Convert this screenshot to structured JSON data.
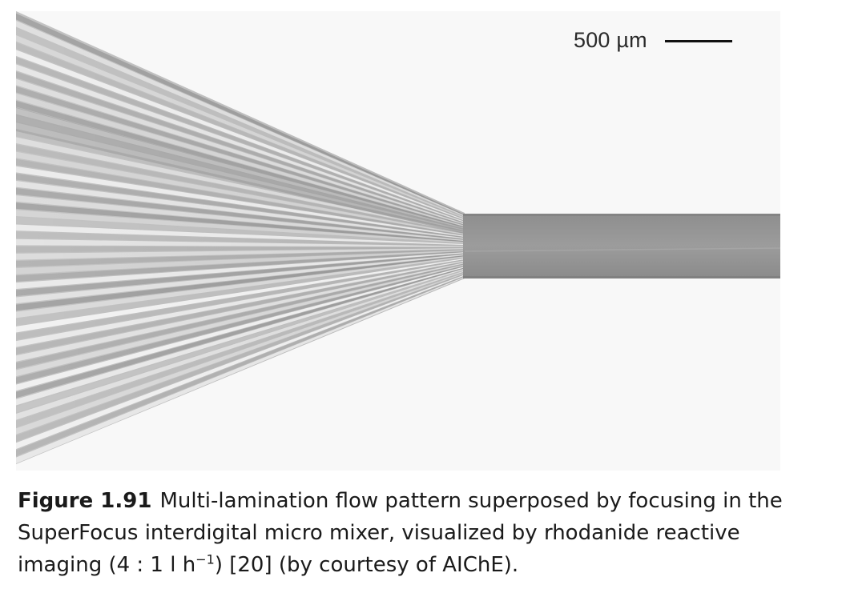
{
  "figure": {
    "scalebar_label": "500 µm"
  },
  "caption": {
    "label": "Figure 1.91",
    "line1": "Multi-lamination flow pattern superposed by focusing in the",
    "line2": "SuperFocus interdigital micro mixer, visualized by rhodanide reactive",
    "line3_pre": "imaging (4 : 1 l h",
    "line3_sup": "−1",
    "line3_post": ") [20] (by courtesy of AIChE)."
  }
}
